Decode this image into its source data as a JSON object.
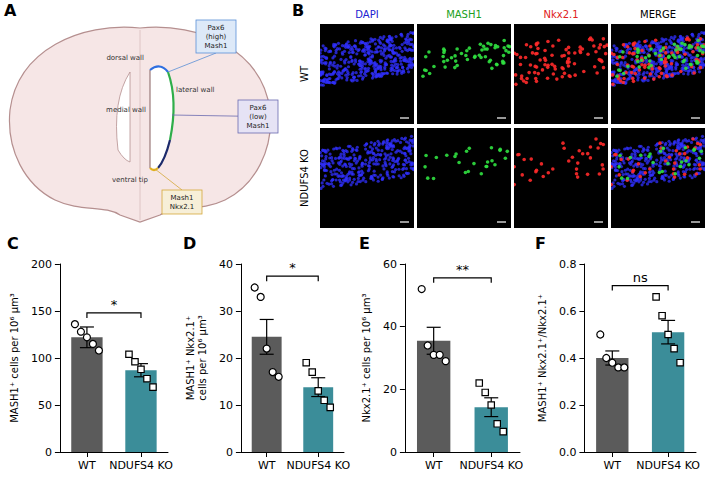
{
  "diagram": {
    "panel": "A",
    "regions": [
      "dorsal wall",
      "medial wall",
      "lateral wall",
      "ventral tip"
    ],
    "boxes": [
      [
        "Pax6",
        "(high)",
        "Mash1"
      ],
      [
        "Pax6",
        "(low)",
        "Mash1"
      ],
      [
        "Mash1",
        "Nkx2.1"
      ]
    ]
  },
  "images": {
    "panel": "B",
    "columns": [
      "DAPI",
      "MASH1",
      "Nkx2.1",
      "MERGE"
    ],
    "rows": [
      "WT",
      "NDUFS4 KO"
    ]
  },
  "chart_data": [
    {
      "panel": "C",
      "type": "bar",
      "y_label": "MASH1⁺ cells per 10⁶ μm³",
      "categories": [
        "WT",
        "NDUFS4 KO"
      ],
      "values": [
        122,
        87
      ],
      "errors": [
        11,
        7
      ],
      "points": [
        [
          136,
          128,
          122,
          115,
          108
        ],
        [
          104,
          96,
          88,
          78,
          69
        ]
      ],
      "colors": [
        "#5b5b5b",
        "#3b8d99"
      ],
      "markers": [
        "circle",
        "square"
      ],
      "ylim": [
        0,
        200
      ],
      "yticks": [
        0,
        50,
        100,
        150,
        200
      ],
      "annotation": "*",
      "grid": false
    },
    {
      "panel": "D",
      "type": "bar",
      "y_label": "MASH1⁺ Nkx2.1⁺ cells per 10⁶ μm³",
      "categories": [
        "WT",
        "NDUFS4 KO"
      ],
      "values": [
        24.5,
        13.8
      ],
      "errors": [
        3.7,
        2.0
      ],
      "points": [
        [
          35,
          33,
          22,
          17,
          16
        ],
        [
          19,
          17,
          13,
          11,
          9.5
        ]
      ],
      "colors": [
        "#5b5b5b",
        "#3b8d99"
      ],
      "markers": [
        "circle",
        "square"
      ],
      "ylim": [
        0,
        40
      ],
      "yticks": [
        0,
        10,
        20,
        30,
        40
      ],
      "annotation": "*",
      "grid": false
    },
    {
      "panel": "E",
      "type": "bar",
      "y_label": "Nkx2.1⁺ cells per 10⁶ μm³",
      "categories": [
        "WT",
        "NDUFS4 KO"
      ],
      "values": [
        35.5,
        14.3
      ],
      "errors": [
        4.3,
        3.0
      ],
      "points": [
        [
          52,
          34,
          31,
          31,
          29
        ],
        [
          22,
          19,
          15,
          9,
          6.5
        ]
      ],
      "colors": [
        "#5b5b5b",
        "#3b8d99"
      ],
      "markers": [
        "circle",
        "square"
      ],
      "ylim": [
        0,
        60
      ],
      "yticks": [
        0,
        20,
        40,
        60
      ],
      "annotation": "**",
      "grid": false
    },
    {
      "panel": "F",
      "type": "bar",
      "y_label": "MASH1⁺ Nkx2.1⁺/Nkx2.1⁺",
      "categories": [
        "WT",
        "NDUFS4 KO"
      ],
      "values": [
        0.4,
        0.51
      ],
      "errors": [
        0.03,
        0.05
      ],
      "points": [
        [
          0.5,
          0.4,
          0.38,
          0.36,
          0.36
        ],
        [
          0.66,
          0.58,
          0.5,
          0.44,
          0.38
        ]
      ],
      "colors": [
        "#5b5b5b",
        "#3b8d99"
      ],
      "markers": [
        "circle",
        "square"
      ],
      "ylim": [
        0,
        0.8
      ],
      "yticks": [
        {
          "value": 0,
          "label": "0.0"
        },
        {
          "value": 0.2,
          "label": "0.2"
        },
        {
          "value": 0.4,
          "label": "0.4"
        },
        {
          "value": 0.6,
          "label": "0.6"
        },
        {
          "value": 0.8,
          "label": "0.8"
        }
      ],
      "annotation": "ns",
      "grid": false
    }
  ]
}
